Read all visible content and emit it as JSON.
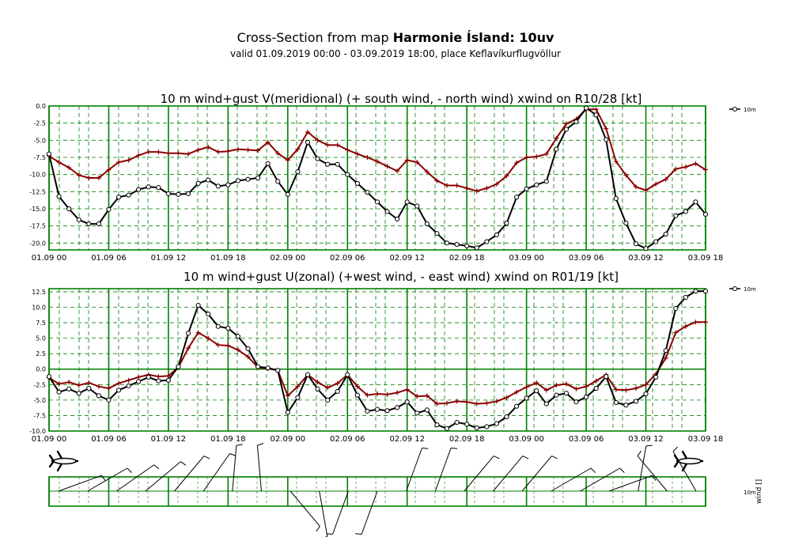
{
  "header": {
    "title_prefix": "Cross-Section from map",
    "title_bold": "Harmonie Ísland: 10uv",
    "subtitle": "valid 01.09.2019 00:00 - 03.09.2019 18:00, place Keflavíkurflugvöllur"
  },
  "colors": {
    "grid": "#008000",
    "gust": "#8b0000",
    "wind": "#000000"
  },
  "chart_data": [
    {
      "type": "line",
      "title": "10 m wind+gust V(meridional) (+ south wind, - north wind) xwind on R10/28 [kt]",
      "x_tick_labels": [
        "01.09 00",
        "01.09 06",
        "01.09 12",
        "01.09 18",
        "02.09 00",
        "02.09 06",
        "02.09 12",
        "02.09 18",
        "03.09 00",
        "03.09 06",
        "03.09 12",
        "03.09 18"
      ],
      "x_range_hours": [
        0,
        66
      ],
      "ylim": [
        -21,
        0
      ],
      "y_ticks": [
        "0.0",
        "-2.5",
        "-5.0",
        "-7.5",
        "-10.0",
        "-12.5",
        "-15.0",
        "-17.5",
        "-20.0"
      ],
      "y_tick_values": [
        0,
        -2.5,
        -5,
        -7.5,
        -10,
        -12.5,
        -15,
        -17.5,
        -20
      ],
      "grid": true,
      "legend": [
        "10m"
      ],
      "legend_position": "top-right",
      "series": [
        {
          "name": "10m",
          "role": "wind",
          "marker": "circle",
          "x": [
            0,
            1,
            2,
            3,
            4,
            5,
            6,
            7,
            8,
            9,
            10,
            11,
            12,
            13,
            14,
            15,
            16,
            17,
            18,
            19,
            20,
            21,
            22,
            23,
            24,
            25,
            26,
            27,
            28,
            29,
            30,
            31,
            32,
            33,
            34,
            35,
            36,
            37,
            38,
            39,
            40,
            41,
            42,
            43,
            44,
            45,
            46,
            47,
            48,
            49,
            50,
            51,
            52,
            53,
            54,
            55,
            56,
            57,
            58,
            59,
            60,
            61,
            62,
            63,
            64,
            65,
            66
          ],
          "values": [
            -7.0,
            -13.2,
            -15.0,
            -16.6,
            -17.2,
            -17.2,
            -15.1,
            -13.3,
            -13.0,
            -12.2,
            -11.8,
            -11.9,
            -12.8,
            -12.9,
            -12.8,
            -11.3,
            -10.8,
            -11.7,
            -11.5,
            -10.9,
            -10.7,
            -10.5,
            -8.4,
            -11.0,
            -12.9,
            -9.6,
            -5.3,
            -7.7,
            -8.5,
            -8.5,
            -10.0,
            -11.3,
            -12.6,
            -14.0,
            -15.4,
            -16.5,
            -14.0,
            -14.6,
            -17.2,
            -18.6,
            -20.0,
            -20.2,
            -20.4,
            -20.7,
            -19.8,
            -18.8,
            -17.1,
            -13.3,
            -12.1,
            -11.5,
            -11.0,
            -6.3,
            -3.4,
            -2.3,
            -0.3,
            -1.3,
            -4.9,
            -13.5,
            -17.1,
            -20.1,
            -20.8,
            -19.8,
            -18.7,
            -16.0,
            -15.4,
            -14.0,
            -15.8
          ]
        },
        {
          "name": "",
          "role": "gust",
          "marker": "plus",
          "x": [
            0,
            1,
            2,
            3,
            4,
            5,
            6,
            7,
            8,
            9,
            10,
            11,
            12,
            13,
            14,
            15,
            16,
            17,
            18,
            19,
            20,
            21,
            22,
            23,
            24,
            25,
            26,
            27,
            28,
            29,
            30,
            31,
            32,
            33,
            34,
            35,
            36,
            37,
            38,
            39,
            40,
            41,
            42,
            43,
            44,
            45,
            46,
            47,
            48,
            49,
            50,
            51,
            52,
            53,
            54,
            55,
            56,
            57,
            58,
            59,
            60,
            61,
            62,
            63,
            64,
            65,
            66
          ],
          "values": [
            -7.3,
            -8.2,
            -9.0,
            -10.1,
            -10.5,
            -10.5,
            -9.3,
            -8.2,
            -7.9,
            -7.2,
            -6.7,
            -6.7,
            -6.9,
            -6.9,
            -7.0,
            -6.4,
            -6.0,
            -6.7,
            -6.6,
            -6.3,
            -6.4,
            -6.5,
            -5.3,
            -6.9,
            -7.9,
            -6.3,
            -3.8,
            -5.0,
            -5.7,
            -5.7,
            -6.4,
            -7.0,
            -7.5,
            -8.1,
            -8.8,
            -9.5,
            -7.9,
            -8.2,
            -9.6,
            -10.9,
            -11.6,
            -11.6,
            -12.0,
            -12.4,
            -12.0,
            -11.4,
            -10.2,
            -8.3,
            -7.5,
            -7.4,
            -7.0,
            -4.7,
            -2.6,
            -1.9,
            -0.5,
            -0.5,
            -3.3,
            -8.1,
            -10.1,
            -11.8,
            -12.3,
            -11.4,
            -10.7,
            -9.2,
            -8.9,
            -8.4,
            -9.3
          ]
        }
      ]
    },
    {
      "type": "line",
      "title": "10 m wind+gust U(zonal) (+west wind, - east wind) xwind on R01/19 [kt]",
      "x_tick_labels": [
        "01.09 00",
        "01.09 06",
        "01.09 12",
        "01.09 18",
        "02.09 00",
        "02.09 06",
        "02.09 12",
        "02.09 18",
        "03.09 00",
        "03.09 06",
        "03.09 12",
        "03.09 18"
      ],
      "x_range_hours": [
        0,
        66
      ],
      "ylim": [
        -10,
        13
      ],
      "y_ticks": [
        "12.5",
        "10.0",
        "7.5",
        "5.0",
        "2.5",
        "0.0",
        "-2.5",
        "-5.0",
        "-7.5",
        "-10.0"
      ],
      "y_tick_values": [
        12.5,
        10,
        7.5,
        5,
        2.5,
        0,
        -2.5,
        -5,
        -7.5,
        -10
      ],
      "grid": true,
      "legend": [
        "10m"
      ],
      "legend_position": "top-right",
      "series": [
        {
          "name": "10m",
          "role": "wind",
          "marker": "circle",
          "x": [
            0,
            1,
            2,
            3,
            4,
            5,
            6,
            7,
            8,
            9,
            10,
            11,
            12,
            13,
            14,
            15,
            16,
            17,
            18,
            19,
            20,
            21,
            22,
            23,
            24,
            25,
            26,
            27,
            28,
            29,
            30,
            31,
            32,
            33,
            34,
            35,
            36,
            37,
            38,
            39,
            40,
            41,
            42,
            43,
            44,
            45,
            46,
            47,
            48,
            49,
            50,
            51,
            52,
            53,
            54,
            55,
            56,
            57,
            58,
            59,
            60,
            61,
            62,
            63,
            64,
            65,
            66
          ],
          "values": [
            -1.2,
            -3.7,
            -3.2,
            -3.9,
            -3.1,
            -4.3,
            -5.0,
            -3.4,
            -2.7,
            -2.0,
            -1.3,
            -1.9,
            -1.8,
            0.4,
            5.8,
            10.3,
            8.9,
            6.9,
            6.6,
            5.3,
            3.3,
            0.4,
            0.2,
            -0.2,
            -7.0,
            -4.6,
            -0.9,
            -3.2,
            -5.0,
            -3.6,
            -0.9,
            -4.2,
            -6.8,
            -6.5,
            -6.7,
            -6.2,
            -5.3,
            -7.1,
            -6.6,
            -9.0,
            -9.6,
            -8.6,
            -8.9,
            -9.5,
            -9.3,
            -8.8,
            -7.7,
            -6.0,
            -4.7,
            -3.5,
            -5.6,
            -4.2,
            -3.9,
            -5.3,
            -4.5,
            -3.1,
            -1.2,
            -5.4,
            -5.8,
            -5.2,
            -4.0,
            -1.3,
            3.0,
            9.8,
            11.6,
            12.6,
            12.6
          ]
        },
        {
          "name": "",
          "role": "gust",
          "marker": "plus",
          "x": [
            0,
            1,
            2,
            3,
            4,
            5,
            6,
            7,
            8,
            9,
            10,
            11,
            12,
            13,
            14,
            15,
            16,
            17,
            18,
            19,
            20,
            21,
            22,
            23,
            24,
            25,
            26,
            27,
            28,
            29,
            30,
            31,
            32,
            33,
            34,
            35,
            36,
            37,
            38,
            39,
            40,
            41,
            42,
            43,
            44,
            45,
            46,
            47,
            48,
            49,
            50,
            51,
            52,
            53,
            54,
            55,
            56,
            57,
            58,
            59,
            60,
            61,
            62,
            63,
            64,
            65,
            66
          ],
          "values": [
            -1.4,
            -2.4,
            -2.1,
            -2.6,
            -2.2,
            -2.8,
            -3.1,
            -2.3,
            -1.8,
            -1.3,
            -0.9,
            -1.2,
            -1.1,
            0.3,
            3.4,
            5.9,
            5.0,
            3.9,
            3.8,
            3.1,
            2.0,
            0.3,
            0.1,
            -0.2,
            -4.3,
            -2.8,
            -0.9,
            -2.1,
            -3.0,
            -2.3,
            -0.9,
            -2.8,
            -4.2,
            -4.0,
            -4.1,
            -3.8,
            -3.3,
            -4.4,
            -4.3,
            -5.6,
            -5.5,
            -5.2,
            -5.3,
            -5.6,
            -5.5,
            -5.2,
            -4.6,
            -3.7,
            -2.9,
            -2.2,
            -3.4,
            -2.6,
            -2.4,
            -3.2,
            -2.8,
            -1.9,
            -0.9,
            -3.3,
            -3.4,
            -3.1,
            -2.5,
            -0.8,
            1.8,
            5.9,
            6.9,
            7.6,
            7.6
          ]
        }
      ]
    }
  ],
  "wind_panel": {
    "legend_level": "10m",
    "legend_label": "wind [] ",
    "barbs": [
      {
        "dir": 70,
        "barbs": 1
      },
      {
        "dir": 60,
        "barbs": 1
      },
      {
        "dir": 55,
        "barbs": 1
      },
      {
        "dir": 50,
        "barbs": 1
      },
      {
        "dir": 40,
        "barbs": 1
      },
      {
        "dir": 35,
        "barbs": 1
      },
      {
        "dir": 5,
        "barbs": 1
      },
      {
        "dir": 355,
        "barbs": 1
      },
      {
        "dir": 140,
        "barbs": 1
      },
      {
        "dir": 170,
        "barbs": 1
      },
      {
        "dir": 200,
        "barbs": 1
      },
      {
        "dir": 200,
        "barbs": 1
      },
      {
        "dir": 20,
        "barbs": 1
      },
      {
        "dir": 20,
        "barbs": 1
      },
      {
        "dir": 40,
        "barbs": 1
      },
      {
        "dir": 40,
        "barbs": 1
      },
      {
        "dir": 40,
        "barbs": 1
      },
      {
        "dir": 60,
        "barbs": 1
      },
      {
        "dir": 60,
        "barbs": 1
      },
      {
        "dir": 70,
        "barbs": 1
      },
      {
        "dir": 10,
        "barbs": 1
      },
      {
        "dir": 320,
        "barbs": 1
      },
      {
        "dir": 330,
        "barbs": 1
      }
    ]
  }
}
